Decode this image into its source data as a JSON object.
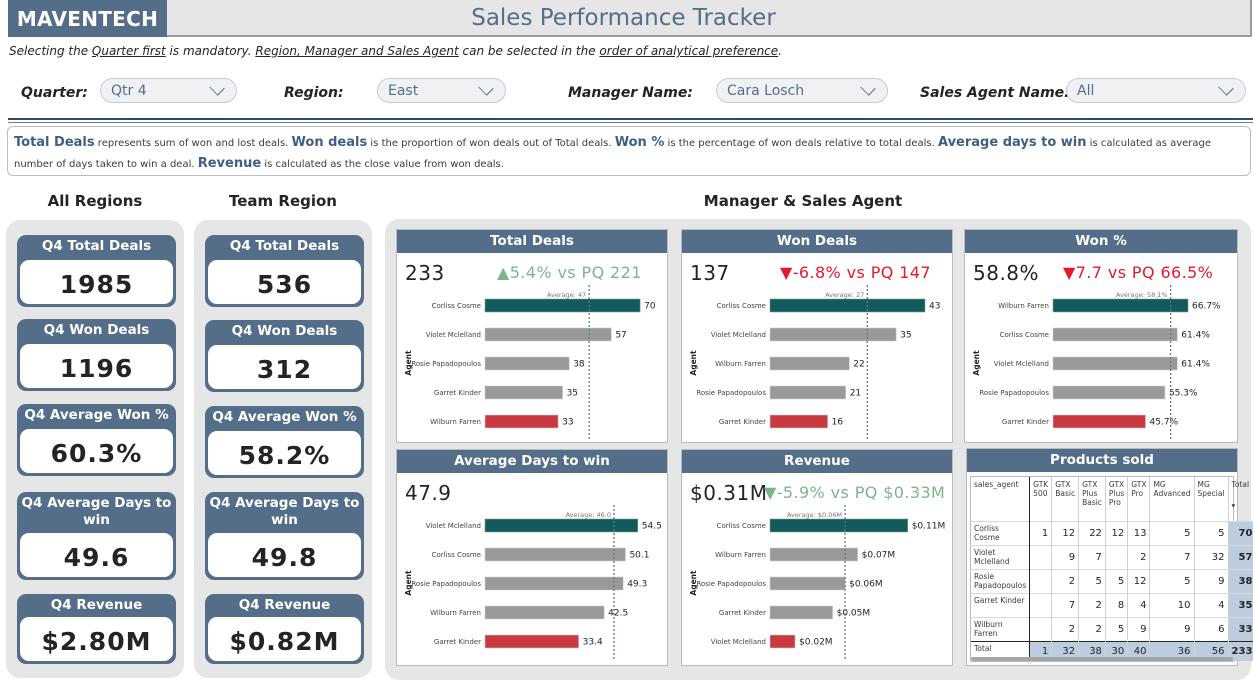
{
  "header": {
    "brand": "MAVENTECH",
    "title": "Sales Performance Tracker"
  },
  "instructions": {
    "p1": "Selecting the ",
    "u1": "Quarter first",
    "p2": " is mandatory.  ",
    "u2": "Region, Manager and Sales Agent",
    "p3": " can be selected in the ",
    "u3": "order of analytical preference",
    "p4": "."
  },
  "filters": {
    "quarter": {
      "label": "Quarter:",
      "value": "Qtr 4"
    },
    "region": {
      "label": "Region:",
      "value": "East"
    },
    "manager": {
      "label": "Manager Name:",
      "value": "Cara Losch"
    },
    "agent": {
      "label": "Sales Agent Name:",
      "value": "All"
    }
  },
  "definitions": {
    "t1": "Total Deals",
    "d1": " represents sum of won and lost deals. ",
    "t2": "Won deals",
    "d2": " is the proportion of won deals out of Total deals. ",
    "t3": "Won %",
    "d3": "  is the percentage of won deals relative to total deals. ",
    "t4": "Average days to win",
    "d4": " is calculated as average number of days taken to win a deal. ",
    "t5": "Revenue",
    "d5": "  is calculated as the close value from won deals."
  },
  "sections": {
    "all_regions": "All Regions",
    "team_region": "Team Region",
    "manager_agent": "Manager & Sales Agent"
  },
  "all_regions": [
    {
      "label": "Q4 Total Deals",
      "value": "1985"
    },
    {
      "label": "Q4 Won Deals",
      "value": "1196"
    },
    {
      "label": "Q4 Average Won %",
      "value": "60.3%"
    },
    {
      "label": "Q4 Average Days to win",
      "value": "49.6"
    },
    {
      "label": "Q4 Revenue",
      "value": "$2.80M"
    }
  ],
  "team_region": [
    {
      "label": "Q4 Total Deals",
      "value": "536"
    },
    {
      "label": "Q4 Won Deals",
      "value": "312"
    },
    {
      "label": "Q4 Average Won %",
      "value": "58.2%"
    },
    {
      "label": "Q4 Average Days to win",
      "value": "49.8"
    },
    {
      "label": "Q4 Revenue",
      "value": "$0.82M"
    }
  ],
  "colors": {
    "top": "#135a5a",
    "mid": "#999999",
    "bottom": "#c9393f",
    "avg_line": "#5c7898",
    "header": "#546e8a"
  },
  "axis_label": "Agent",
  "chart_data": [
    {
      "type": "bar",
      "title": "Total Deals",
      "kpi": "233",
      "delta": "▲5.4% vs PQ 221",
      "delta_dir": "up",
      "categories": [
        "Corliss Cosme",
        "Violet Mclelland",
        "Rosie Papadopoulos",
        "Garret Kinder",
        "Wilburn Farren"
      ],
      "values": [
        70,
        57,
        38,
        35,
        33
      ],
      "labels": [
        "70",
        "57",
        "38",
        "35",
        "33"
      ],
      "average": 47,
      "average_label": "Average: 47",
      "xmax": 74,
      "ylabel": "Agent"
    },
    {
      "type": "bar",
      "title": "Won Deals",
      "kpi": "137",
      "delta": "▼-6.8% vs PQ 147",
      "delta_dir": "down",
      "categories": [
        "Corliss Cosme",
        "Violet Mclelland",
        "Wilburn Farren",
        "Rosie Papadopoulos",
        "Garret Kinder"
      ],
      "values": [
        43,
        35,
        22,
        21,
        16
      ],
      "labels": [
        "43",
        "35",
        "22",
        "21",
        "16"
      ],
      "average": 27,
      "average_label": "Average: 27",
      "xmax": 45.5,
      "ylabel": "Agent"
    },
    {
      "type": "bar",
      "title": "Won %",
      "kpi": "58.8%",
      "delta": "▼7.7 vs PQ 66.5%",
      "delta_dir": "down",
      "categories": [
        "Wilburn Farren",
        "Corliss Cosme",
        "Violet Mclelland",
        "Rosie Papadopoulos",
        "Garret Kinder"
      ],
      "values": [
        66.7,
        61.4,
        61.4,
        55.3,
        45.7
      ],
      "labels": [
        "66.7%",
        "61.4%",
        "61.4%",
        "55.3%",
        "45.7%"
      ],
      "average": 58.1,
      "average_label": "Average: 58.1%",
      "xmax": 82,
      "ylabel": "Agent"
    },
    {
      "type": "bar",
      "title": "Average Days to win",
      "kpi": "47.9",
      "delta": "",
      "delta_dir": "none",
      "categories": [
        "Violet Mclelland",
        "Corliss Cosme",
        "Rosie Papadopoulos",
        "Wilburn Farren",
        "Garret Kinder"
      ],
      "values": [
        54.5,
        50.1,
        49.3,
        42.5,
        33.4
      ],
      "labels": [
        "54.5",
        "50.1",
        "49.3",
        "42.5",
        "33.4"
      ],
      "average": 46.0,
      "average_label": "Average: 46.0",
      "xmax": 58.5,
      "ylabel": "Agent"
    },
    {
      "type": "bar",
      "title": "Revenue",
      "kpi": "$0.31M",
      "delta": "▼-5.9% vs PQ $0.33M",
      "delta_dir": "good-down",
      "categories": [
        "Corliss Cosme",
        "Wilburn Farren",
        "Rosie Papadopoulos",
        "Garret Kinder",
        "Violet Mclelland"
      ],
      "values": [
        0.11,
        0.07,
        0.06,
        0.05,
        0.02
      ],
      "labels": [
        "$0.11M",
        "$0.07M",
        "$0.06M",
        "$0.05M",
        "$0.02M"
      ],
      "average": 0.06,
      "average_label": "Average: $0.06M",
      "xmax": 0.131,
      "ylabel": "Agent"
    },
    {
      "type": "table",
      "title": "Products sold",
      "columns": [
        "sales_agent",
        "GTK 500",
        "GTX Basic",
        "GTX Plus Basic",
        "GTX Plus Pro",
        "GTX Pro",
        "MG Advanced",
        "MG Special",
        "Total"
      ],
      "rows": [
        [
          "Corliss Cosme",
          "1",
          "12",
          "22",
          "12",
          "13",
          "5",
          "5",
          "70"
        ],
        [
          "Violet Mclelland",
          "",
          "9",
          "7",
          "",
          "2",
          "7",
          "32",
          "57"
        ],
        [
          "Rosie Papadopoulos",
          "",
          "2",
          "5",
          "5",
          "12",
          "5",
          "9",
          "38"
        ],
        [
          "Garret Kinder",
          "",
          "7",
          "2",
          "8",
          "4",
          "10",
          "4",
          "35"
        ],
        [
          "Wilburn Farren",
          "",
          "2",
          "2",
          "5",
          "9",
          "9",
          "6",
          "33"
        ]
      ],
      "total_row": [
        "Total",
        "1",
        "32",
        "38",
        "30",
        "40",
        "36",
        "56",
        "233"
      ],
      "sort_indicator": "▾"
    }
  ]
}
